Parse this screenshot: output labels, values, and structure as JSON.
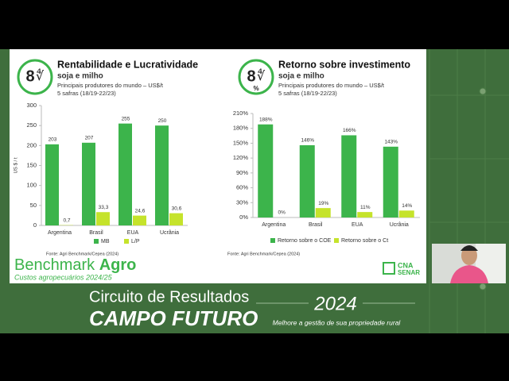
{
  "chart_data": [
    {
      "type": "bar",
      "title": "Rentabilidade e Lucratividade",
      "subtitle": "soja e milho",
      "notes": [
        "Principais produtores do mundo – US$/t",
        "5 safras (18/19-22/23)"
      ],
      "ylabel": "US $ / t",
      "source": "Fonte: Agri Benchmark/Cepea (2024)",
      "categories": [
        "Argentina",
        "Brasil",
        "EUA",
        "Ucrânia"
      ],
      "series": [
        {
          "name": "MB",
          "color": "#3cb44b",
          "values": [
            203,
            207,
            255,
            250
          ]
        },
        {
          "name": "L/P",
          "color": "#c5e32b",
          "values": [
            0.7,
            33.3,
            24.6,
            30.6
          ],
          "value_labels": [
            "0,7",
            "33,3",
            "24,6",
            "30,6"
          ]
        }
      ],
      "ylim": [
        0,
        300
      ],
      "yticks": [
        0,
        50,
        100,
        150,
        200,
        250,
        300
      ],
      "grid": false
    },
    {
      "type": "bar",
      "title": "Retorno sobre investimento",
      "subtitle": "soja e milho",
      "icon_symbol": "%",
      "notes": [
        "Principais produtores do mundo – US$/t",
        "5 safras (18/19-22/23)"
      ],
      "source": "Fonte: Agri Benchmark/Cepea (2024)",
      "categories": [
        "Argentina",
        "Brasil",
        "EUA",
        "Ucrânia"
      ],
      "series": [
        {
          "name": "Retorno sobre o COE",
          "color": "#3cb44b",
          "values": [
            188,
            146,
            166,
            143
          ],
          "value_labels": [
            "188%",
            "146%",
            "166%",
            "143%"
          ]
        },
        {
          "name": "Retorno sobre o Ct",
          "color": "#c5e32b",
          "values": [
            0,
            19,
            11,
            14
          ],
          "value_labels": [
            "0%",
            "19%",
            "11%",
            "14%"
          ]
        }
      ],
      "ylim": [
        0,
        210
      ],
      "yticks": [
        {
          "value": 0,
          "label": "0%"
        },
        {
          "value": 30,
          "label": "30%"
        },
        {
          "value": 60,
          "label": "60%"
        },
        {
          "value": 90,
          "label": "90%"
        },
        {
          "value": 120,
          "label": "120%"
        },
        {
          "value": 150,
          "label": "150%"
        },
        {
          "value": 180,
          "label": "180%"
        },
        {
          "value": 210,
          "label": "210%"
        }
      ],
      "grid": false
    }
  ],
  "branding": {
    "brand_a": "Benchmark",
    "brand_b": "Agro",
    "brand_sub": "Custos agropecuários 2024/25",
    "partner_a": "CNA",
    "partner_b": "SENAR",
    "event_line1": "Circuito de Resultados",
    "event_line2": "CAMPO FUTURO",
    "year": "2024",
    "tagline": "Melhore a gestão de sua propriedade rural"
  }
}
